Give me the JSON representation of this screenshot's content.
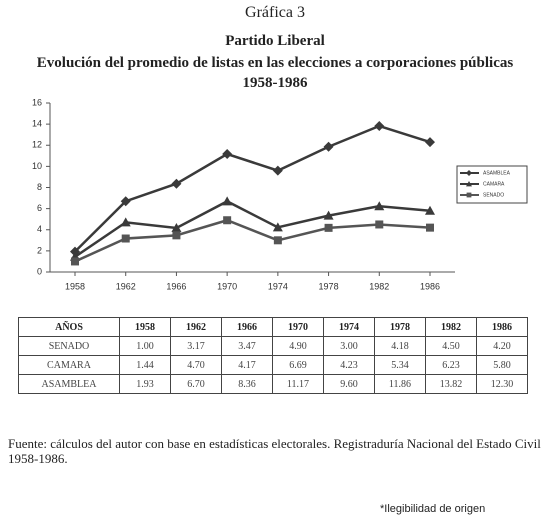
{
  "header": {
    "label": "Gráfica 3",
    "title": "Partido Liberal",
    "subtitle": "Evolución del promedio de listas en las elecciones a corporaciones públicas 1958-1986"
  },
  "chart_data": {
    "type": "line",
    "categories": [
      "1958",
      "1962",
      "1966",
      "1970",
      "1974",
      "1978",
      "1982",
      "1986"
    ],
    "series": [
      {
        "name": "ASAMBLEA",
        "color": "#3a3a3a",
        "marker": "diamond",
        "values": [
          1.93,
          6.7,
          8.36,
          11.17,
          9.6,
          11.86,
          13.82,
          12.3
        ]
      },
      {
        "name": "CAMARA",
        "color": "#3a3a3a",
        "marker": "triangle",
        "values": [
          1.44,
          4.7,
          4.17,
          6.69,
          4.23,
          5.34,
          6.23,
          5.8
        ]
      },
      {
        "name": "SENADO",
        "color": "#555555",
        "marker": "square",
        "values": [
          1.0,
          3.17,
          3.47,
          4.9,
          3.0,
          4.18,
          4.5,
          4.2
        ]
      }
    ],
    "ylim": [
      0,
      16
    ],
    "yticks": [
      0,
      2,
      4,
      6,
      8,
      10,
      12,
      14,
      16
    ],
    "grid": false,
    "legend": "right"
  },
  "table": {
    "header": [
      "AÑOS",
      "1958",
      "1962",
      "1966",
      "1970",
      "1974",
      "1978",
      "1982",
      "1986"
    ],
    "rows": [
      [
        "SENADO",
        "1.00",
        "3.17",
        "3.47",
        "4.90",
        "3.00",
        "4.18",
        "4.50",
        "4.20"
      ],
      [
        "CAMARA",
        "1.44",
        "4.70",
        "4.17",
        "6.69",
        "4.23",
        "5.34",
        "6.23",
        "5.80"
      ],
      [
        "ASAMBLEA",
        "1.93",
        "6.70",
        "8.36",
        "11.17",
        "9.60",
        "11.86",
        "13.82",
        "12.30"
      ]
    ]
  },
  "source": "Fuente: cálculos del autor con base en estadísticas electorales. Registraduría Nacional del Estado Civil 1958-1986.",
  "note": "*Ilegibilidad de origen"
}
